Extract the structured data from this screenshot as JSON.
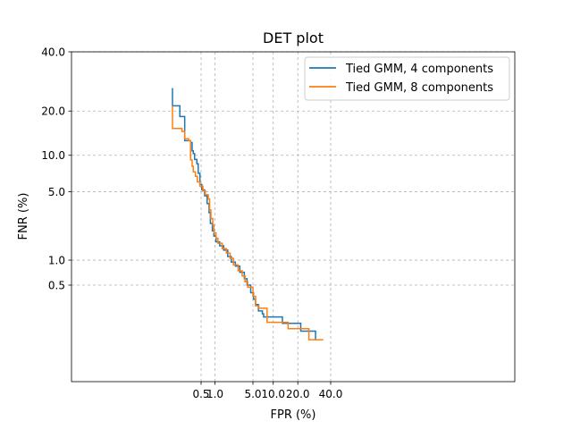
{
  "chart_data": {
    "type": "line",
    "title": "DET plot",
    "xlabel": "FPR (%)",
    "ylabel": "FNR (%)",
    "x_scale": "probit",
    "y_scale": "probit",
    "xlim": [
      0.05,
      45
    ],
    "ylim": [
      0.05,
      40
    ],
    "x_ticks": [
      {
        "value": 0.5,
        "label": "0.5"
      },
      {
        "value": 1.0,
        "label": "1.0"
      },
      {
        "value": 5.0,
        "label": "5.0"
      },
      {
        "value": 10.0,
        "label": "10.0"
      },
      {
        "value": 20.0,
        "label": "20.0"
      },
      {
        "value": 40.0,
        "label": "40.0"
      }
    ],
    "y_ticks": [
      {
        "value": 0.5,
        "label": "0.5"
      },
      {
        "value": 1.0,
        "label": "1.0"
      },
      {
        "value": 5.0,
        "label": "5.0"
      },
      {
        "value": 10.0,
        "label": "10.0"
      },
      {
        "value": 20.0,
        "label": "20.0"
      },
      {
        "value": 40.0,
        "label": "40.0"
      }
    ],
    "grid": true,
    "legend_position": "top-right",
    "series": [
      {
        "name": "Tied GMM, 4 components",
        "color": "#1f77b4",
        "points": [
          [
            0.1,
            27
          ],
          [
            0.1,
            21.5
          ],
          [
            0.155,
            21.5
          ],
          [
            0.155,
            18.5
          ],
          [
            0.205,
            18.5
          ],
          [
            0.205,
            12.8
          ],
          [
            0.285,
            12.8
          ],
          [
            0.285,
            12.4
          ],
          [
            0.31,
            12.4
          ],
          [
            0.31,
            10.8
          ],
          [
            0.33,
            10.8
          ],
          [
            0.33,
            10.3
          ],
          [
            0.355,
            10.3
          ],
          [
            0.355,
            9.3
          ],
          [
            0.4,
            9.3
          ],
          [
            0.4,
            8.6
          ],
          [
            0.43,
            8.6
          ],
          [
            0.43,
            7.2
          ],
          [
            0.47,
            7.2
          ],
          [
            0.47,
            5.8
          ],
          [
            0.52,
            5.8
          ],
          [
            0.52,
            5.2
          ],
          [
            0.6,
            5.2
          ],
          [
            0.6,
            4.6
          ],
          [
            0.68,
            4.6
          ],
          [
            0.68,
            3.9
          ],
          [
            0.75,
            3.9
          ],
          [
            0.75,
            3.2
          ],
          [
            0.8,
            3.2
          ],
          [
            0.8,
            2.5
          ],
          [
            0.88,
            2.5
          ],
          [
            0.88,
            2.1
          ],
          [
            0.95,
            2.1
          ],
          [
            0.95,
            1.85
          ],
          [
            1.05,
            1.85
          ],
          [
            1.05,
            1.6
          ],
          [
            1.25,
            1.6
          ],
          [
            1.25,
            1.45
          ],
          [
            1.5,
            1.45
          ],
          [
            1.5,
            1.3
          ],
          [
            1.8,
            1.3
          ],
          [
            1.8,
            1.1
          ],
          [
            2.1,
            1.1
          ],
          [
            2.1,
            0.95
          ],
          [
            2.5,
            0.95
          ],
          [
            2.5,
            0.85
          ],
          [
            3.0,
            0.85
          ],
          [
            3.0,
            0.72
          ],
          [
            3.6,
            0.72
          ],
          [
            3.6,
            0.6
          ],
          [
            4.0,
            0.6
          ],
          [
            4.0,
            0.5
          ],
          [
            4.6,
            0.5
          ],
          [
            4.6,
            0.4
          ],
          [
            5.1,
            0.4
          ],
          [
            5.1,
            0.33
          ],
          [
            5.5,
            0.33
          ],
          [
            5.5,
            0.28
          ],
          [
            6.1,
            0.28
          ],
          [
            6.1,
            0.23
          ],
          [
            7.0,
            0.23
          ],
          [
            7.0,
            0.21
          ],
          [
            7.3,
            0.21
          ],
          [
            7.3,
            0.19
          ],
          [
            13.2,
            0.19
          ],
          [
            13.2,
            0.155
          ],
          [
            21.5,
            0.155
          ],
          [
            21.5,
            0.12
          ],
          [
            30.0,
            0.12
          ],
          [
            30.0,
            0.09
          ]
        ]
      },
      {
        "name": "Tied GMM, 8 components",
        "color": "#ff7f0e",
        "points": [
          [
            0.1,
            21.5
          ],
          [
            0.1,
            15.5
          ],
          [
            0.175,
            15.5
          ],
          [
            0.175,
            14.8
          ],
          [
            0.205,
            14.8
          ],
          [
            0.205,
            13.2
          ],
          [
            0.255,
            13.2
          ],
          [
            0.255,
            12.8
          ],
          [
            0.285,
            12.8
          ],
          [
            0.285,
            9.2
          ],
          [
            0.31,
            9.2
          ],
          [
            0.31,
            8.2
          ],
          [
            0.33,
            8.2
          ],
          [
            0.33,
            7.4
          ],
          [
            0.37,
            7.4
          ],
          [
            0.37,
            6.8
          ],
          [
            0.41,
            6.8
          ],
          [
            0.41,
            6.1
          ],
          [
            0.47,
            6.1
          ],
          [
            0.47,
            5.6
          ],
          [
            0.55,
            5.6
          ],
          [
            0.55,
            5.1
          ],
          [
            0.62,
            5.1
          ],
          [
            0.62,
            4.7
          ],
          [
            0.72,
            4.7
          ],
          [
            0.72,
            4.3
          ],
          [
            0.77,
            4.3
          ],
          [
            0.77,
            3.4
          ],
          [
            0.82,
            3.4
          ],
          [
            0.82,
            2.8
          ],
          [
            0.9,
            2.8
          ],
          [
            0.9,
            2.4
          ],
          [
            0.95,
            2.4
          ],
          [
            0.95,
            2.0
          ],
          [
            1.05,
            2.0
          ],
          [
            1.05,
            1.75
          ],
          [
            1.15,
            1.75
          ],
          [
            1.15,
            1.55
          ],
          [
            1.4,
            1.55
          ],
          [
            1.4,
            1.35
          ],
          [
            1.7,
            1.35
          ],
          [
            1.7,
            1.2
          ],
          [
            2.0,
            1.2
          ],
          [
            2.0,
            1.05
          ],
          [
            2.3,
            1.05
          ],
          [
            2.3,
            0.88
          ],
          [
            2.8,
            0.88
          ],
          [
            2.8,
            0.75
          ],
          [
            3.3,
            0.75
          ],
          [
            3.3,
            0.65
          ],
          [
            3.7,
            0.65
          ],
          [
            3.7,
            0.55
          ],
          [
            4.1,
            0.55
          ],
          [
            4.1,
            0.47
          ],
          [
            5.0,
            0.47
          ],
          [
            5.0,
            0.36
          ],
          [
            5.5,
            0.36
          ],
          [
            5.5,
            0.27
          ],
          [
            6.2,
            0.27
          ],
          [
            6.2,
            0.25
          ],
          [
            8.2,
            0.25
          ],
          [
            8.2,
            0.16
          ],
          [
            15.5,
            0.16
          ],
          [
            15.5,
            0.13
          ],
          [
            26.0,
            0.13
          ],
          [
            26.0,
            0.09
          ],
          [
            35.0,
            0.09
          ]
        ]
      }
    ]
  }
}
